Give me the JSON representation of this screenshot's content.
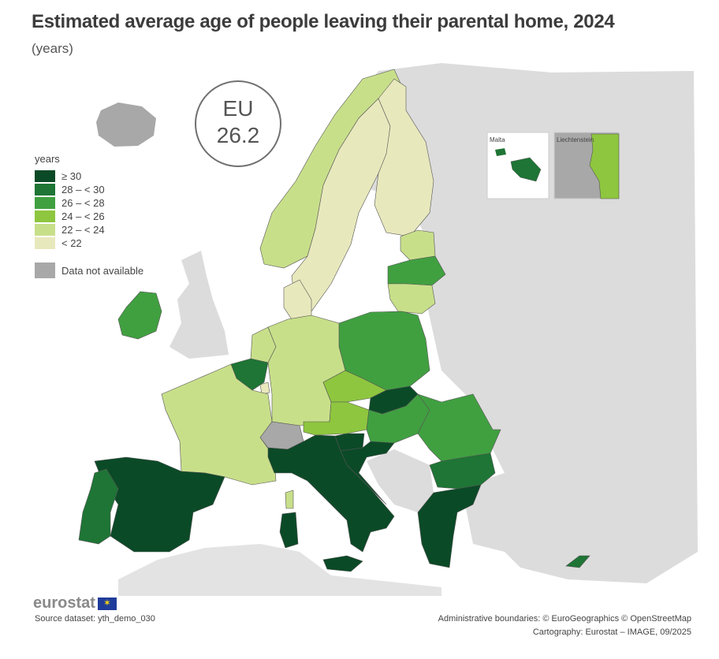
{
  "title": "Estimated average age of people leaving their parental home, 2024",
  "subtitle": "(years)",
  "eu_badge": {
    "label": "EU",
    "value": "26.2"
  },
  "legend": {
    "title": "years",
    "classes": [
      {
        "label": "≥ 30",
        "color": "#0b4a27"
      },
      {
        "label": "28 – < 30",
        "color": "#1e7535"
      },
      {
        "label": "26 – < 28",
        "color": "#40a040"
      },
      {
        "label": "24 – < 26",
        "color": "#8ec63f"
      },
      {
        "label": "22 – < 24",
        "color": "#c8df8a"
      },
      {
        "label": "< 22",
        "color": "#e8e8bd"
      }
    ],
    "na_label": "Data not available",
    "na_color": "#a8a8a8"
  },
  "insets": {
    "malta": "Malta",
    "liechtenstein": "Liechtenstein"
  },
  "colors": {
    "non_eu_land": "#dcdcdc",
    "sea": "#ffffff",
    "border": "#555555"
  },
  "countries": {
    "Spain": "≥ 30",
    "Italy": "≥ 30",
    "Greece": "≥ 30",
    "Croatia": "≥ 30",
    "Slovakia": "≥ 30",
    "Slovenia": "≥ 30",
    "Malta": "≥ 30",
    "Portugal": "28 – < 30",
    "Bulgaria": "28 – < 30",
    "Belgium": "28 – < 30",
    "Cyprus": "28 – < 30",
    "Ireland": "26 – < 28",
    "Poland": "26 – < 28",
    "Latvia": "26 – < 28",
    "Romania": "26 – < 28",
    "Hungary": "26 – < 28",
    "Czechia": "24 – < 26",
    "Austria": "24 – < 26",
    "Liechtenstein": "24 – < 26",
    "France": "22 – < 24",
    "Germany": "22 – < 24",
    "Norway": "22 – < 24",
    "Netherlands": "22 – < 24",
    "Lithuania": "22 – < 24",
    "Estonia": "22 – < 24",
    "Sweden": "< 22",
    "Finland": "< 22",
    "Denmark": "< 22",
    "Luxembourg": "< 22",
    "Switzerland": "Data not available",
    "Iceland": "Data not available"
  },
  "footer": {
    "logo": "eurostat",
    "source": "Source dataset: yth_demo_030",
    "boundaries": "Administrative boundaries: © EuroGeographics © OpenStreetMap",
    "cartography": "Cartography: Eurostat – IMAGE, 09/2025"
  }
}
